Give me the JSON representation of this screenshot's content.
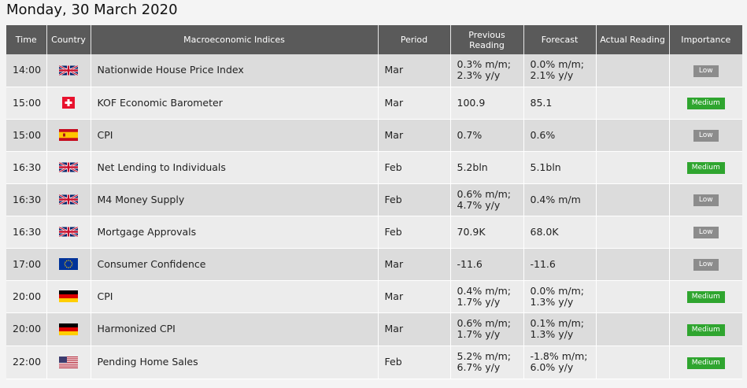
{
  "date_title": "Monday, 30 March 2020",
  "colors": {
    "header_bg": "#5a5a5a",
    "row_odd": "#dcdcdc",
    "row_even": "#ececec",
    "low_badge": "#8c8c8c",
    "medium_badge": "#2fa52f"
  },
  "headers": {
    "time": "Time",
    "country": "Country",
    "indices": "Macroeconomic Indices",
    "period": "Period",
    "previous": "Previous Reading",
    "forecast": "Forecast",
    "actual": "Actual Reading",
    "importance": "Importance"
  },
  "rows": [
    {
      "time": "14:00",
      "flag": "uk-flag-icon",
      "index": "Nationwide House Price Index",
      "period": "Mar",
      "previous": [
        "0.3% m/m;",
        "2.3% y/y"
      ],
      "forecast": [
        "0.0% m/m;",
        "2.1% y/y"
      ],
      "actual": "",
      "importance": "Low"
    },
    {
      "time": "15:00",
      "flag": "switzerland-flag-icon",
      "index": "KOF Economic Barometer",
      "period": "Mar",
      "previous": [
        "100.9"
      ],
      "forecast": [
        "85.1"
      ],
      "actual": "",
      "importance": "Medium"
    },
    {
      "time": "15:00",
      "flag": "spain-flag-icon",
      "index": "CPI",
      "period": "Mar",
      "previous": [
        "0.7%"
      ],
      "forecast": [
        "0.6%"
      ],
      "actual": "",
      "importance": "Low"
    },
    {
      "time": "16:30",
      "flag": "uk-flag-icon",
      "index": "Net Lending to Individuals",
      "period": "Feb",
      "previous": [
        "5.2bln"
      ],
      "forecast": [
        "5.1bln"
      ],
      "actual": "",
      "importance": "Medium"
    },
    {
      "time": "16:30",
      "flag": "uk-flag-icon",
      "index": "M4 Money Supply",
      "period": "Feb",
      "previous": [
        "0.6% m/m;",
        "4.7% y/y"
      ],
      "forecast": [
        "0.4% m/m"
      ],
      "actual": "",
      "importance": "Low"
    },
    {
      "time": "16:30",
      "flag": "uk-flag-icon",
      "index": "Mortgage Approvals",
      "period": "Feb",
      "previous": [
        "70.9K"
      ],
      "forecast": [
        "68.0K"
      ],
      "actual": "",
      "importance": "Low"
    },
    {
      "time": "17:00",
      "flag": "eu-flag-icon",
      "index": "Consumer Confidence",
      "period": "Mar",
      "previous": [
        "-11.6"
      ],
      "forecast": [
        "-11.6"
      ],
      "actual": "",
      "importance": "Low"
    },
    {
      "time": "20:00",
      "flag": "germany-flag-icon",
      "index": "CPI",
      "period": "Mar",
      "previous": [
        "0.4% m/m;",
        "1.7% y/y"
      ],
      "forecast": [
        "0.0% m/m;",
        "1.3% y/y"
      ],
      "actual": "",
      "importance": "Medium"
    },
    {
      "time": "20:00",
      "flag": "germany-flag-icon",
      "index": "Harmonized CPI",
      "period": "Mar",
      "previous": [
        "0.6% m/m;",
        "1.7% y/y"
      ],
      "forecast": [
        "0.1% m/m;",
        "1.3% y/y"
      ],
      "actual": "",
      "importance": "Medium"
    },
    {
      "time": "22:00",
      "flag": "usa-flag-icon",
      "index": "Pending Home Sales",
      "period": "Feb",
      "previous": [
        "5.2% m/m;",
        "6.7% y/y"
      ],
      "forecast": [
        "-1.8% m/m;",
        "6.0% y/y"
      ],
      "actual": "",
      "importance": "Medium"
    }
  ]
}
